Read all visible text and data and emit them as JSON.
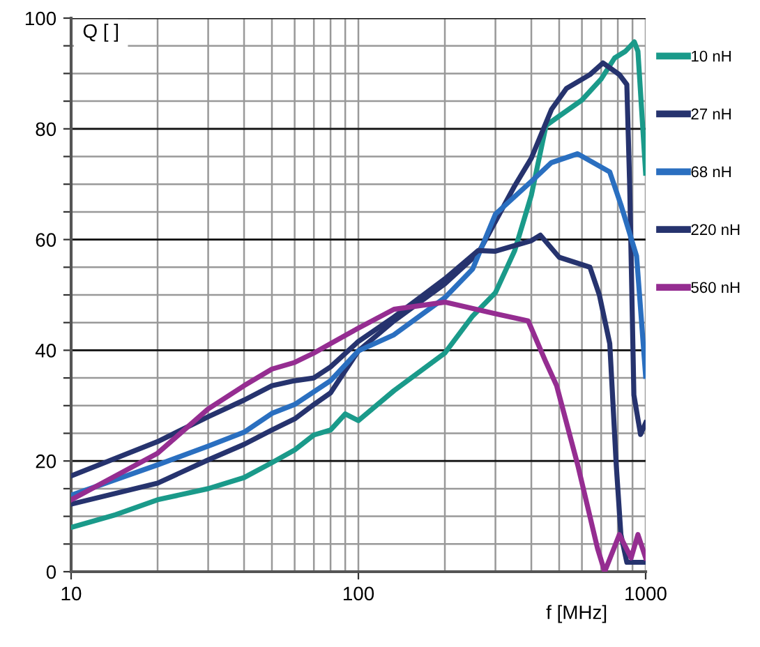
{
  "chart_data": {
    "type": "line",
    "xlabel": "f [MHz]",
    "ylabel": "Q [ ]",
    "log": "x",
    "xlim": [
      10,
      1000
    ],
    "xticks": [
      10,
      100,
      1000
    ],
    "ylim": [
      0,
      100
    ],
    "yticks": [
      0,
      {
        "value": 5,
        "label": null
      },
      {
        "value": 10,
        "label": null
      },
      {
        "value": 15,
        "label": null
      },
      20,
      {
        "value": 25,
        "label": null
      },
      {
        "value": 30,
        "label": null
      },
      {
        "value": 35,
        "label": null
      },
      40,
      {
        "value": 45,
        "label": null
      },
      {
        "value": 50,
        "label": null
      },
      {
        "value": 55,
        "label": null
      },
      60,
      {
        "value": 65,
        "label": null
      },
      {
        "value": 70,
        "label": null
      },
      {
        "value": 75,
        "label": null
      },
      80,
      {
        "value": 85,
        "label": null
      },
      {
        "value": 90,
        "label": null
      },
      {
        "value": 95,
        "label": null
      },
      100
    ],
    "grid": true,
    "legend": "right",
    "marker": "none",
    "line_style": "solid",
    "series": [
      {
        "name": "10 nH",
        "color": "#1a9a8a",
        "x": [
          10,
          14.3,
          20,
          30,
          40,
          50,
          60,
          70,
          80,
          90,
          100,
          133,
          200,
          250,
          300,
          350,
          400,
          450,
          500,
          600,
          700,
          780,
          850,
          913,
          940,
          1000
        ],
        "values": [
          8,
          10.3,
          13,
          15,
          17,
          19.7,
          22,
          24.7,
          25.6,
          28.5,
          27.3,
          32.7,
          39.5,
          46.2,
          50.4,
          58,
          68,
          80.6,
          82.3,
          85.2,
          89,
          92.8,
          94,
          95.7,
          94,
          72
        ]
      },
      {
        "name": "27 nH",
        "color": "#26336e",
        "x": [
          10,
          20,
          30,
          40,
          50,
          60,
          70,
          80,
          100,
          133,
          200,
          261,
          350,
          400,
          470,
          530,
          640,
          710,
          810,
          860,
          880,
          910,
          960,
          1000
        ],
        "values": [
          12.2,
          16,
          20.2,
          23,
          25.6,
          27.6,
          30.2,
          32.3,
          39.9,
          45.3,
          52,
          57.5,
          69.7,
          74.7,
          83.5,
          87.3,
          89.8,
          91.9,
          89.8,
          88,
          69.7,
          31.9,
          24.8,
          26.9
        ]
      },
      {
        "name": "68 nH",
        "color": "#2a6fc0",
        "x": [
          10,
          20,
          30,
          40,
          50,
          60,
          80,
          100,
          133,
          200,
          250,
          300,
          400,
          470,
          580,
          750,
          820,
          930,
          1000
        ],
        "values": [
          13.8,
          19.3,
          22.7,
          25.2,
          28.6,
          30.2,
          34.5,
          39.9,
          42.8,
          49.5,
          54.7,
          64.6,
          70.5,
          73.9,
          75.5,
          72.2,
          66.3,
          57,
          35.3
        ]
      },
      {
        "name": "220 nH",
        "color": "#26336e",
        "x": [
          10,
          20,
          30,
          40,
          50,
          60,
          70,
          80,
          100,
          133,
          200,
          261,
          300,
          400,
          430,
          500,
          640,
          690,
          750,
          790,
          820,
          860,
          1000
        ],
        "values": [
          17.3,
          23.5,
          28,
          31,
          33.6,
          34.5,
          35,
          37,
          41.6,
          46,
          52.9,
          58,
          57.9,
          59.8,
          60.8,
          56.8,
          55,
          50,
          41.2,
          19.3,
          6.7,
          1.7,
          1.7
        ]
      },
      {
        "name": "560 nH",
        "color": "#952d91",
        "x": [
          10,
          20,
          30,
          40,
          50,
          60,
          70,
          80,
          100,
          133,
          200,
          300,
          390,
          450,
          490,
          580,
          680,
          720,
          810,
          890,
          940,
          1000
        ],
        "values": [
          13,
          21.4,
          29.4,
          33.6,
          36.6,
          37.8,
          39.5,
          41.2,
          44,
          47.4,
          48.7,
          46.6,
          45.3,
          37.8,
          33.6,
          19.3,
          4.2,
          0,
          6.7,
          2.5,
          6.7,
          2.5
        ]
      }
    ]
  }
}
